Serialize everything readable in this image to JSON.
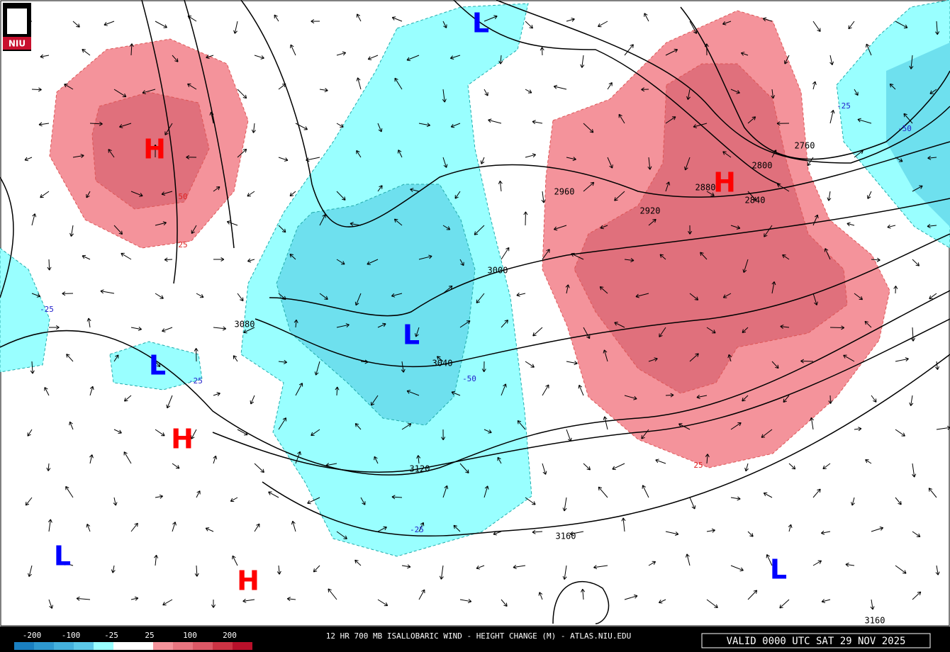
{
  "logo": "NIU",
  "title": "12 HR 700 MB ISALLOBARIC WIND - HEIGHT CHANGE (M) - ATLAS.NIU.EDU",
  "valid": "VALID 0000 UTC SAT 29 NOV 2025",
  "legend": [
    -200,
    -100,
    -25,
    25,
    100,
    200
  ],
  "centers": [
    "H",
    "L",
    "H",
    "L",
    "L",
    "H",
    "L",
    "H",
    "L"
  ],
  "contour_labels": [
    3080,
    3040,
    3000,
    3120,
    3160,
    2960,
    2920,
    2880,
    2840,
    2800,
    2760,
    3160
  ],
  "change_labels": [
    50,
    25,
    -25,
    -25,
    -50,
    -25,
    25,
    -25,
    -50
  ]
}
